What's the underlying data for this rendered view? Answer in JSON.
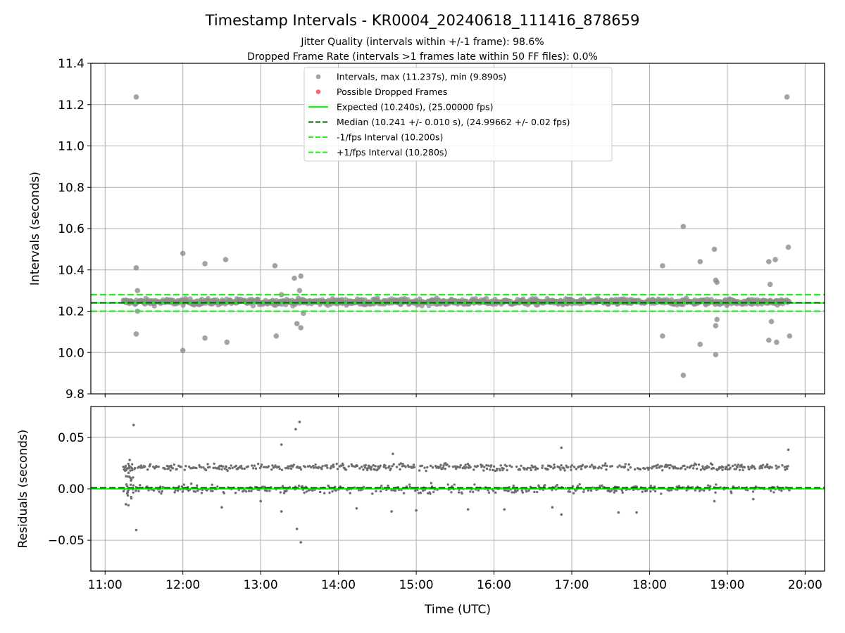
{
  "colors": {
    "interval_point": "#8c8c8c",
    "residual_point": "#6e6e6e",
    "expected": "#00ff00",
    "median": "#006400",
    "interval_band": "#22ee22",
    "dropped": "#ff5555",
    "grid": "#b0b0b0"
  },
  "chart_data": [
    {
      "type": "scatter",
      "title": "Timestamp Intervals - KR0004_20240618_111416_878659",
      "subtitle_1": "Jitter Quality (intervals within +/-1 frame): 98.6%",
      "subtitle_2": "Dropped Frame Rate (intervals >1 frames late within 50 FF files): 0.0%",
      "ylabel": "Intervals (seconds)",
      "ylim": [
        9.8,
        11.4
      ],
      "xlim": [
        "10:49",
        "20:15"
      ],
      "y_ticks": [
        "9.8",
        "10.0",
        "10.2",
        "10.4",
        "10.6",
        "10.8",
        "11.0",
        "11.2",
        "11.4"
      ],
      "grid": true,
      "legend_position": "top-center",
      "legend": [
        "Intervals, max (11.237s), min (9.890s)",
        "Possible Dropped Frames",
        "Expected (10.240s), (25.00000 fps)",
        "Median (10.241 +/- 0.010 s), (24.99662 +/- 0.02 fps)",
        "-1/fps Interval (10.200s)",
        "+1/fps Interval (10.280s)"
      ],
      "reference_lines": {
        "expected": 10.24,
        "median": 10.241,
        "minus_one_frame": 10.2,
        "plus_one_frame": 10.28
      },
      "data_extent": {
        "start": "11:14",
        "end": "19:48"
      },
      "dense_band": {
        "center": 10.245,
        "spread": 0.015
      },
      "outliers": [
        {
          "t": "11:24",
          "y": 11.237
        },
        {
          "t": "11:24",
          "y": 10.41
        },
        {
          "t": "11:25",
          "y": 10.3
        },
        {
          "t": "11:24",
          "y": 10.09
        },
        {
          "t": "11:25",
          "y": 10.2
        },
        {
          "t": "12:00",
          "y": 10.48
        },
        {
          "t": "12:00",
          "y": 10.01
        },
        {
          "t": "12:17",
          "y": 10.43
        },
        {
          "t": "12:17",
          "y": 10.07
        },
        {
          "t": "12:33",
          "y": 10.45
        },
        {
          "t": "12:34",
          "y": 10.05
        },
        {
          "t": "13:11",
          "y": 10.42
        },
        {
          "t": "13:12",
          "y": 10.08
        },
        {
          "t": "13:16",
          "y": 10.28
        },
        {
          "t": "13:26",
          "y": 10.36
        },
        {
          "t": "13:30",
          "y": 10.3
        },
        {
          "t": "13:31",
          "y": 10.37
        },
        {
          "t": "13:28",
          "y": 10.14
        },
        {
          "t": "13:31",
          "y": 10.12
        },
        {
          "t": "13:33",
          "y": 10.19
        },
        {
          "t": "18:10",
          "y": 10.42
        },
        {
          "t": "18:10",
          "y": 10.08
        },
        {
          "t": "18:26",
          "y": 10.61
        },
        {
          "t": "18:26",
          "y": 9.89
        },
        {
          "t": "18:39",
          "y": 10.44
        },
        {
          "t": "18:39",
          "y": 10.04
        },
        {
          "t": "18:50",
          "y": 10.5
        },
        {
          "t": "18:51",
          "y": 10.35
        },
        {
          "t": "18:52",
          "y": 10.34
        },
        {
          "t": "18:51",
          "y": 10.13
        },
        {
          "t": "18:52",
          "y": 10.16
        },
        {
          "t": "18:51",
          "y": 9.99
        },
        {
          "t": "19:32",
          "y": 10.44
        },
        {
          "t": "19:33",
          "y": 10.33
        },
        {
          "t": "19:37",
          "y": 10.45
        },
        {
          "t": "19:47",
          "y": 10.51
        },
        {
          "t": "19:46",
          "y": 11.237
        },
        {
          "t": "19:34",
          "y": 10.15
        },
        {
          "t": "19:32",
          "y": 10.06
        },
        {
          "t": "19:38",
          "y": 10.05
        },
        {
          "t": "19:48",
          "y": 10.08
        }
      ]
    },
    {
      "type": "scatter",
      "ylabel": "Residuals (seconds)",
      "xlabel": "Time (UTC)",
      "ylim": [
        -0.08,
        0.08
      ],
      "x_ticks": [
        "11:00",
        "12:00",
        "13:00",
        "14:00",
        "15:00",
        "16:00",
        "17:00",
        "18:00",
        "19:00",
        "20:00"
      ],
      "y_ticks": [
        "−0.05",
        "0.00",
        "0.05"
      ],
      "grid": true,
      "reference_lines": {
        "expected": 0.0,
        "median": 0.001
      },
      "bands": [
        {
          "center": 0.021,
          "spread": 0.003
        },
        {
          "center": 0.0,
          "spread": 0.004
        }
      ],
      "outliers": [
        {
          "t": "11:22",
          "y": 0.062
        },
        {
          "t": "11:24",
          "y": -0.04
        },
        {
          "t": "11:16",
          "y": -0.015
        },
        {
          "t": "11:18",
          "y": -0.016
        },
        {
          "t": "11:19",
          "y": 0.028
        },
        {
          "t": "12:30",
          "y": -0.018
        },
        {
          "t": "13:00",
          "y": -0.012
        },
        {
          "t": "13:16",
          "y": 0.043
        },
        {
          "t": "13:16",
          "y": -0.022
        },
        {
          "t": "13:30",
          "y": 0.065
        },
        {
          "t": "13:27",
          "y": 0.058
        },
        {
          "t": "13:28",
          "y": -0.039
        },
        {
          "t": "13:31",
          "y": -0.052
        },
        {
          "t": "14:14",
          "y": -0.019
        },
        {
          "t": "14:42",
          "y": 0.034
        },
        {
          "t": "14:41",
          "y": -0.022
        },
        {
          "t": "15:00",
          "y": -0.021
        },
        {
          "t": "15:40",
          "y": -0.02
        },
        {
          "t": "16:08",
          "y": -0.02
        },
        {
          "t": "16:45",
          "y": -0.018
        },
        {
          "t": "16:52",
          "y": 0.04
        },
        {
          "t": "16:52",
          "y": -0.025
        },
        {
          "t": "17:36",
          "y": -0.023
        },
        {
          "t": "17:50",
          "y": -0.023
        },
        {
          "t": "18:50",
          "y": -0.012
        },
        {
          "t": "19:20",
          "y": -0.01
        },
        {
          "t": "19:47",
          "y": 0.038
        }
      ]
    }
  ]
}
